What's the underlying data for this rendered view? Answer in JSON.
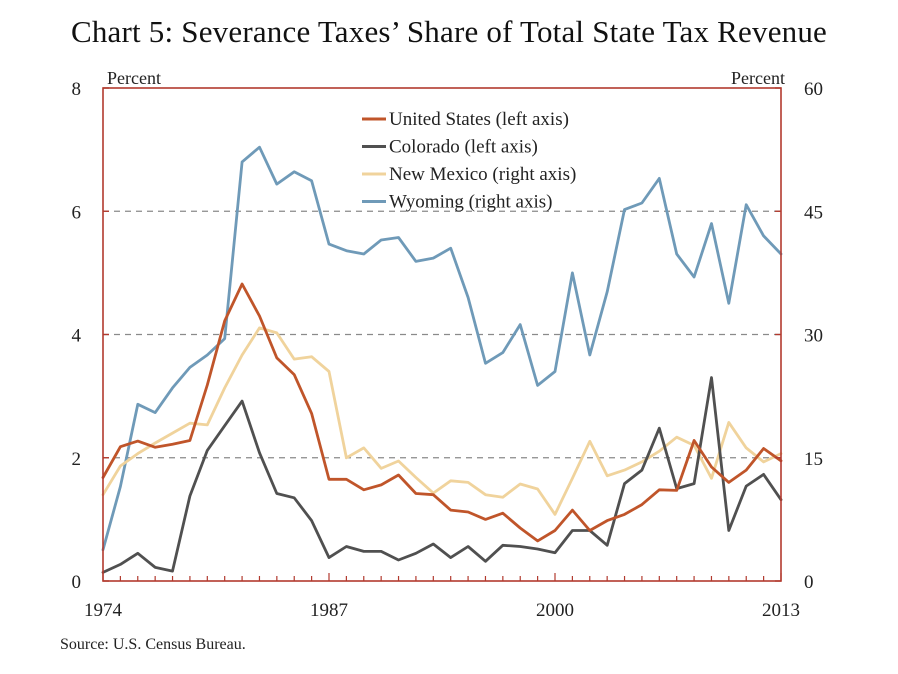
{
  "title": "Chart 5: Severance Taxes’ Share of Total State Tax Revenue",
  "source": "Source: U.S. Census Bureau.",
  "chart_data": {
    "type": "line",
    "left_axis_label": "Percent",
    "right_axis_label": "Percent",
    "left_ylim": [
      0,
      8
    ],
    "right_ylim": [
      0,
      60
    ],
    "left_ticks": [
      0,
      2,
      4,
      6,
      8
    ],
    "right_ticks": [
      0,
      15,
      30,
      45,
      60
    ],
    "xlim": [
      1974,
      2013
    ],
    "x_ticks": [
      1974,
      1987,
      2000,
      2013
    ],
    "gridlines_dashed_at_left": [
      2,
      4,
      6
    ],
    "legend_position": "top-center",
    "x": [
      1974,
      1975,
      1976,
      1977,
      1978,
      1979,
      1980,
      1981,
      1982,
      1983,
      1984,
      1985,
      1986,
      1987,
      1988,
      1989,
      1990,
      1991,
      1992,
      1993,
      1994,
      1995,
      1996,
      1997,
      1998,
      1999,
      2000,
      2001,
      2002,
      2003,
      2004,
      2005,
      2006,
      2007,
      2008,
      2009,
      2010,
      2011,
      2012,
      2013
    ],
    "series": [
      {
        "name": "United States (left axis)",
        "axis": "left",
        "color": "#c0552a",
        "values": [
          1.68,
          2.18,
          2.27,
          2.17,
          2.22,
          2.28,
          3.18,
          4.22,
          4.82,
          4.3,
          3.62,
          3.35,
          2.72,
          1.65,
          1.65,
          1.48,
          1.56,
          1.72,
          1.42,
          1.4,
          1.15,
          1.12,
          1.0,
          1.1,
          0.86,
          0.65,
          0.82,
          1.15,
          0.82,
          0.98,
          1.08,
          1.24,
          1.48,
          1.47,
          2.28,
          1.85,
          1.6,
          1.8,
          2.15,
          1.95
        ]
      },
      {
        "name": "Colorado (left axis)",
        "axis": "left",
        "color": "#505050",
        "values": [
          0.14,
          0.27,
          0.45,
          0.22,
          0.16,
          1.38,
          2.12,
          2.52,
          2.92,
          2.08,
          1.42,
          1.35,
          0.98,
          0.38,
          0.56,
          0.48,
          0.48,
          0.34,
          0.45,
          0.6,
          0.38,
          0.56,
          0.32,
          0.58,
          0.56,
          0.52,
          0.46,
          0.82,
          0.82,
          0.58,
          1.58,
          1.8,
          2.48,
          1.5,
          1.58,
          3.3,
          0.82,
          1.54,
          1.73,
          1.32
        ]
      },
      {
        "name": "New Mexico (right axis)",
        "axis": "right",
        "color": "#f0d39c",
        "values": [
          10.5,
          14.0,
          15.5,
          16.8,
          18.0,
          19.2,
          19.0,
          23.5,
          27.5,
          30.8,
          30.2,
          27.0,
          27.3,
          25.5,
          15.0,
          16.2,
          13.7,
          14.6,
          12.6,
          10.7,
          12.2,
          12.0,
          10.5,
          10.2,
          11.8,
          11.2,
          8.1,
          12.5,
          17.0,
          12.8,
          13.5,
          14.5,
          15.8,
          17.5,
          16.5,
          12.5,
          19.3,
          16.2,
          14.5,
          15.5
        ]
      },
      {
        "name": "Wyoming (right axis)",
        "axis": "right",
        "color": "#6f9ab8",
        "values": [
          3.8,
          11.5,
          21.5,
          20.5,
          23.5,
          26.0,
          27.5,
          29.5,
          51.0,
          52.8,
          48.3,
          49.8,
          48.7,
          41.0,
          40.2,
          39.8,
          41.5,
          41.8,
          38.9,
          39.3,
          40.5,
          34.5,
          26.5,
          27.8,
          31.2,
          23.8,
          25.5,
          37.5,
          27.5,
          35.2,
          45.2,
          46.0,
          49.0,
          39.8,
          37.0,
          43.5,
          33.8,
          45.8,
          42.0,
          39.8
        ]
      }
    ]
  }
}
